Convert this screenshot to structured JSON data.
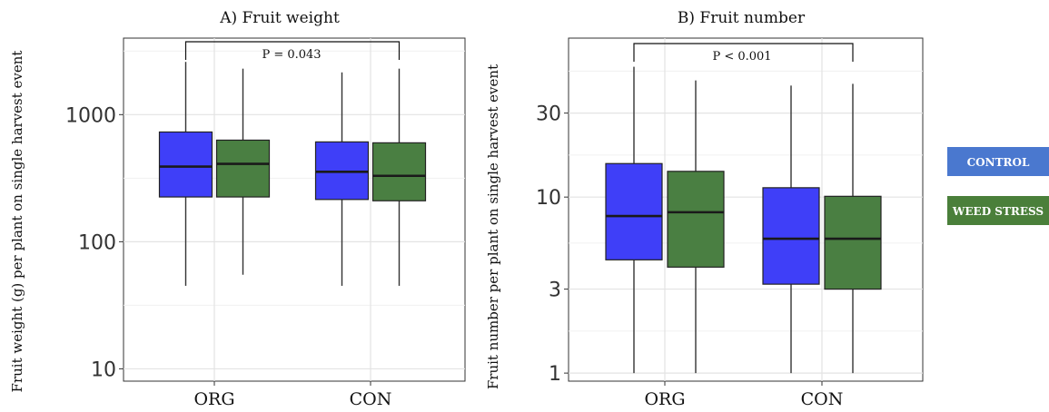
{
  "colors": {
    "control": "#3f3ff8",
    "weed_stress": "#4a7f42",
    "legend_control": "#4a78cf",
    "legend_weed_stress": "#4a7f3a"
  },
  "legend": {
    "control": "CONTROL",
    "weed_stress": "WEED STRESS"
  },
  "chart_data": [
    {
      "type": "box",
      "title": "A) Fruit weight",
      "ylabel": "Fruit weight (g) per plant on single harvest event",
      "xlabel": "",
      "yscale": "log",
      "ylim": [
        8,
        4000
      ],
      "yticks": [
        10,
        100,
        1000
      ],
      "ytick_labels": [
        "10",
        "100",
        "1000"
      ],
      "categories": [
        "ORG",
        "CON"
      ],
      "series": [
        {
          "name": "CONTROL",
          "boxes": [
            {
              "min": 45,
              "q1": 225,
              "median": 390,
              "q3": 730,
              "max": 2600
            },
            {
              "min": 45,
              "q1": 215,
              "median": 355,
              "q3": 610,
              "max": 2150
            }
          ]
        },
        {
          "name": "WEED STRESS",
          "boxes": [
            {
              "min": 55,
              "q1": 225,
              "median": 410,
              "q3": 630,
              "max": 2300
            },
            {
              "min": 45,
              "q1": 210,
              "median": 330,
              "q3": 600,
              "max": 2300
            }
          ]
        }
      ],
      "annotation": {
        "text": "P = 0.043",
        "from": "ORG",
        "to": "CON"
      },
      "grid": true
    },
    {
      "type": "box",
      "title": "B) Fruit number",
      "ylabel": "Fruit number per plant on single harvest event",
      "xlabel": "",
      "yscale": "log",
      "ylim": [
        0.9,
        80
      ],
      "yticks": [
        1,
        3,
        10,
        30
      ],
      "ytick_labels": [
        "1",
        "3",
        "10",
        "30"
      ],
      "categories": [
        "ORG",
        "CON"
      ],
      "series": [
        {
          "name": "CONTROL",
          "boxes": [
            {
              "min": 1,
              "q1": 4.4,
              "median": 7.8,
              "q3": 15.5,
              "max": 55
            },
            {
              "min": 1,
              "q1": 3.2,
              "median": 5.8,
              "q3": 11.3,
              "max": 43
            }
          ]
        },
        {
          "name": "WEED STRESS",
          "boxes": [
            {
              "min": 1,
              "q1": 4.0,
              "median": 8.2,
              "q3": 14.0,
              "max": 46
            },
            {
              "min": 1,
              "q1": 3.0,
              "median": 5.8,
              "q3": 10.1,
              "max": 44
            }
          ]
        }
      ],
      "annotation": {
        "text": "P < 0.001",
        "from": "ORG",
        "to": "CON"
      },
      "grid": true
    }
  ]
}
